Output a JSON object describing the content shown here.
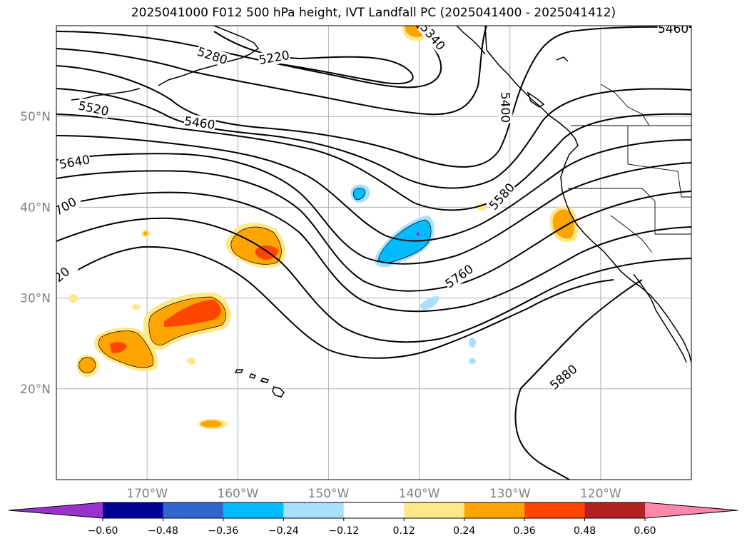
{
  "title": "2025041000 F012 500 hPa height, IVT Landfall PC (2025041400 - 2025041412)",
  "map": {
    "lon_range": [
      -180,
      -110
    ],
    "lat_range": [
      10,
      60
    ],
    "lon_ticks": [
      {
        "value": -170,
        "label": "170°W"
      },
      {
        "value": -160,
        "label": "160°W"
      },
      {
        "value": -150,
        "label": "150°W"
      },
      {
        "value": -140,
        "label": "140°W"
      },
      {
        "value": -130,
        "label": "130°W"
      },
      {
        "value": -120,
        "label": "120°W"
      }
    ],
    "lat_ticks": [
      {
        "value": 20,
        "label": "20°N"
      },
      {
        "value": 30,
        "label": "30°N"
      },
      {
        "value": 40,
        "label": "40°N"
      },
      {
        "value": 50,
        "label": "50°N"
      }
    ],
    "gridlines": true
  },
  "contour_labels": [
    {
      "text": "5280",
      "lon": -162.8,
      "lat": 56.7,
      "rotate": 18
    },
    {
      "text": "5220",
      "lon": -156.0,
      "lat": 56.5,
      "rotate": -10
    },
    {
      "text": "5340",
      "lon": -138.5,
      "lat": 58.8,
      "rotate": 50
    },
    {
      "text": "5400",
      "lon": -130.5,
      "lat": 51.0,
      "rotate": 90
    },
    {
      "text": "5460",
      "lon": -112.0,
      "lat": 59.7,
      "rotate": 0
    },
    {
      "text": "5520",
      "lon": -175.9,
      "lat": 50.9,
      "rotate": 12
    },
    {
      "text": "5460",
      "lon": -164.2,
      "lat": 49.3,
      "rotate": 8
    },
    {
      "text": "5640",
      "lon": -178.0,
      "lat": 45.0,
      "rotate": -10
    },
    {
      "text": "5580",
      "lon": -130.9,
      "lat": 41.2,
      "rotate": -48
    },
    {
      "text": "700",
      "lon": -179.0,
      "lat": 40.1,
      "rotate": -30
    },
    {
      "text": "5760",
      "lon": -135.6,
      "lat": 32.4,
      "rotate": -35
    },
    {
      "text": "20",
      "lon": -179.4,
      "lat": 32.6,
      "rotate": -40
    },
    {
      "text": "5880",
      "lon": -124.1,
      "lat": 21.3,
      "rotate": -40
    }
  ],
  "colorbar": {
    "colors": [
      "#9933cc",
      "#000099",
      "#3366cc",
      "#00bbff",
      "#aae0ff",
      "#ffffff",
      "#ffe888",
      "#ffa500",
      "#ff4500",
      "#b22222",
      "#ff88aa"
    ],
    "ticks": [
      "−0.60",
      "−0.48",
      "−0.36",
      "−0.24",
      "−0.12",
      "0.12",
      "0.24",
      "0.36",
      "0.48",
      "0.60"
    ],
    "extend": "both"
  }
}
